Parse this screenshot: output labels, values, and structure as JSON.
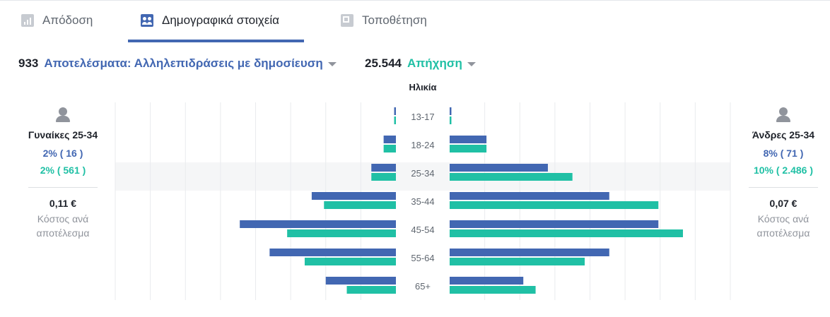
{
  "tabs": [
    {
      "label": "Απόδοση",
      "active": false
    },
    {
      "label": "Δημογραφικά στοιχεία",
      "active": true
    },
    {
      "label": "Τοποθέτηση",
      "active": false
    }
  ],
  "metrics": {
    "results": {
      "value": "933",
      "label": "Αποτελέσματα: Αλληλεπιδράσεις με δημοσίευση"
    },
    "reach": {
      "value": "25.544",
      "label": "Απήχηση"
    }
  },
  "colors": {
    "results": "#4267b2",
    "reach": "#20c0a5",
    "highlight": "#f5f6f7",
    "grid": "#e9ebee",
    "label": "#606770"
  },
  "icons": {
    "performance": "bar-chart-icon",
    "demographics": "users-icon",
    "placement": "placement-icon",
    "female": "female-person-icon",
    "male": "male-person-icon",
    "metric_dropdown": "caret-down-icon"
  },
  "women": {
    "title": "Γυναίκες 25-34",
    "results_pct": "2% ( 16 )",
    "reach_pct": "2% ( 561 )",
    "cost_value": "0,11 €",
    "cost_label": "Κόστος ανά αποτέλεσμα"
  },
  "men": {
    "title": "Άνδρες 25-34",
    "results_pct": "8% ( 71 )",
    "reach_pct": "10% ( 2.486 )",
    "cost_value": "0,07 €",
    "cost_label": "Κόστος ανά αποτέλεσμα"
  },
  "chart_data": {
    "type": "bar",
    "title": "Ηλικία",
    "categories": [
      "13-17",
      "18-24",
      "25-34",
      "35-44",
      "45-54",
      "55-64",
      "65+"
    ],
    "highlighted_category": "25-34",
    "grid": true,
    "series": [
      {
        "name": "Αποτελέσματα: Αλληλεπιδράσεις με δημοσίευση",
        "group": "women",
        "metric": "results",
        "values": [
          0.1,
          0.7,
          1.4,
          4.8,
          8.9,
          7.2,
          4.0
        ]
      },
      {
        "name": "Απήχηση",
        "group": "women",
        "metric": "reach",
        "values": [
          0.1,
          0.7,
          1.4,
          4.1,
          6.2,
          5.2,
          2.8
        ]
      },
      {
        "name": "Αποτελέσματα: Αλληλεπιδράσεις με δημοσίευση",
        "group": "men",
        "metric": "results",
        "values": [
          0.1,
          2.1,
          5.6,
          9.1,
          11.9,
          9.1,
          4.2
        ]
      },
      {
        "name": "Απήχηση",
        "group": "men",
        "metric": "reach",
        "values": [
          0.1,
          2.1,
          7.0,
          11.9,
          13.3,
          7.7,
          4.9
        ]
      }
    ],
    "xlim": [
      0,
      16
    ]
  }
}
